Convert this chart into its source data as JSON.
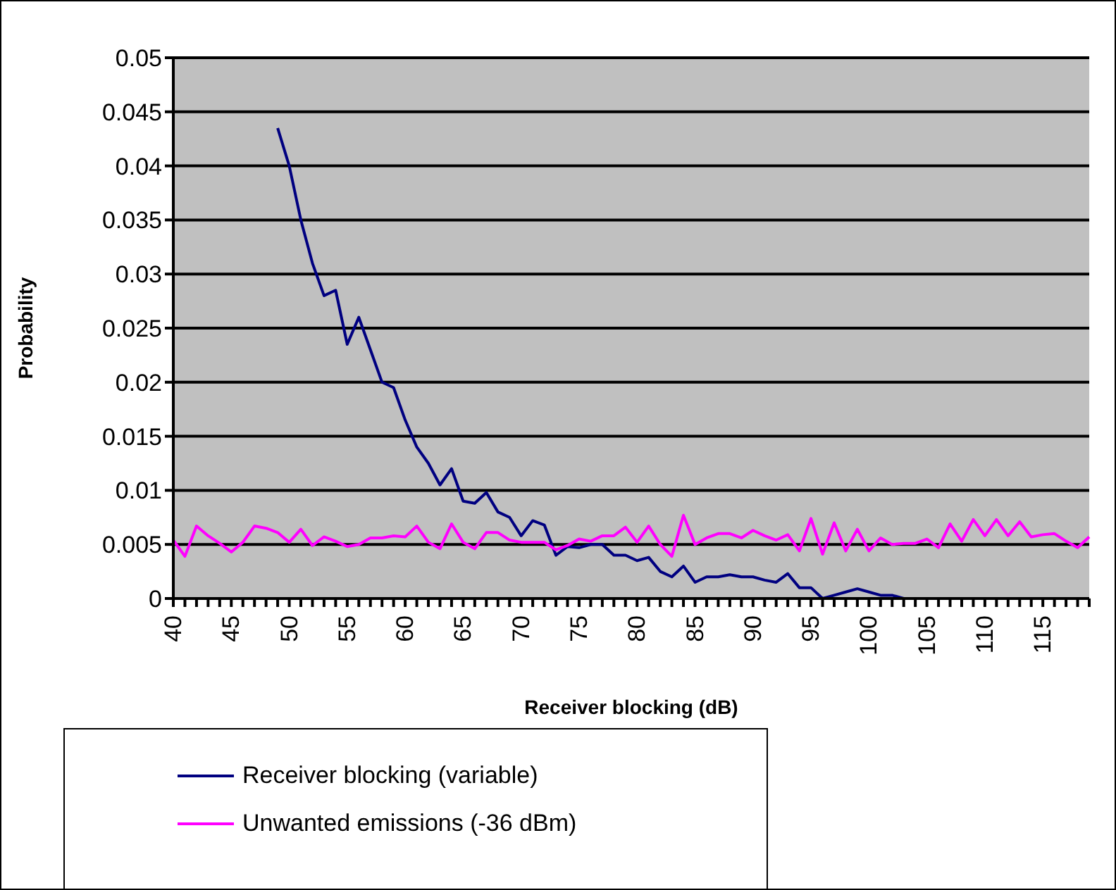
{
  "chart_data": {
    "type": "line",
    "xlabel": "Receiver blocking (dB)",
    "ylabel": "Probability",
    "categories": [
      "40",
      null,
      null,
      null,
      null,
      "45",
      null,
      null,
      null,
      null,
      "50",
      null,
      null,
      null,
      null,
      "55",
      null,
      null,
      null,
      null,
      "60",
      null,
      null,
      null,
      null,
      "65",
      null,
      null,
      null,
      null,
      "70",
      null,
      null,
      null,
      null,
      "75",
      null,
      null,
      null,
      null,
      "80",
      null,
      null,
      null,
      null,
      "85",
      null,
      null,
      null,
      null,
      "90",
      null,
      null,
      null,
      null,
      "95",
      null,
      null,
      null,
      null,
      "100",
      null,
      null,
      null,
      null,
      "105",
      null,
      null,
      null,
      null,
      "110",
      null,
      null,
      null,
      null,
      "115",
      null,
      null,
      null,
      null
    ],
    "series": [
      {
        "name": "Receiver blocking (variable)",
        "color": "#000080",
        "values": [
          null,
          null,
          null,
          null,
          null,
          null,
          null,
          null,
          null,
          0.0435,
          0.04,
          0.035,
          0.031,
          0.028,
          0.0285,
          0.0235,
          0.026,
          0.023,
          0.02,
          0.0195,
          0.0165,
          0.014,
          0.0125,
          0.0105,
          0.012,
          0.009,
          0.0088,
          0.0098,
          0.008,
          0.0075,
          0.0058,
          0.0072,
          0.0068,
          0.004,
          0.0048,
          0.0047,
          0.005,
          0.005,
          0.004,
          0.004,
          0.0035,
          0.0038,
          0.0025,
          0.002,
          0.003,
          0.0015,
          0.002,
          0.002,
          0.0022,
          0.002,
          0.002,
          0.0017,
          0.0015,
          0.0023,
          0.001,
          0.001,
          0,
          0.0003,
          0.0006,
          0.0009,
          0.0006,
          0.0003,
          0.0003,
          0,
          null,
          null,
          null,
          null,
          null,
          null,
          null,
          null,
          null,
          null,
          null,
          null,
          null,
          null,
          null,
          null
        ]
      },
      {
        "name": "Unwanted emissions (-36 dBm)",
        "color": "#ff00ff",
        "values": [
          0.0054,
          0.0039,
          0.0067,
          0.0058,
          0.0051,
          0.0043,
          0.0052,
          0.0067,
          0.0065,
          0.0061,
          0.0052,
          0.0064,
          0.0049,
          0.0057,
          0.0053,
          0.0048,
          0.005,
          0.0056,
          0.0056,
          0.0058,
          0.0057,
          0.0067,
          0.0052,
          0.0046,
          0.0069,
          0.0052,
          0.0046,
          0.0061,
          0.0061,
          0.0054,
          0.0052,
          0.0052,
          0.0052,
          0.0045,
          0.0049,
          0.0055,
          0.0053,
          0.0058,
          0.0058,
          0.0066,
          0.0052,
          0.0067,
          0.005,
          0.0039,
          0.0077,
          0.005,
          0.0056,
          0.006,
          0.006,
          0.0056,
          0.0063,
          0.0058,
          0.0054,
          0.0059,
          0.0044,
          0.0074,
          0.0041,
          0.007,
          0.0044,
          0.0064,
          0.0044,
          0.0056,
          0.005,
          0.0051,
          0.0051,
          0.0055,
          0.0047,
          0.0069,
          0.0053,
          0.0073,
          0.0058,
          0.0073,
          0.0058,
          0.0071,
          0.0057,
          0.0059,
          0.006,
          0.0053,
          0.0047,
          0.0057
        ]
      }
    ],
    "ylim": [
      0,
      0.05
    ],
    "yticks": [
      0,
      0.005,
      0.01,
      0.015,
      0.02,
      0.025,
      0.03,
      0.035,
      0.04,
      0.045,
      0.05
    ],
    "grid": "y",
    "legend": "bottom left",
    "marker": "none",
    "line_style": "solid"
  }
}
